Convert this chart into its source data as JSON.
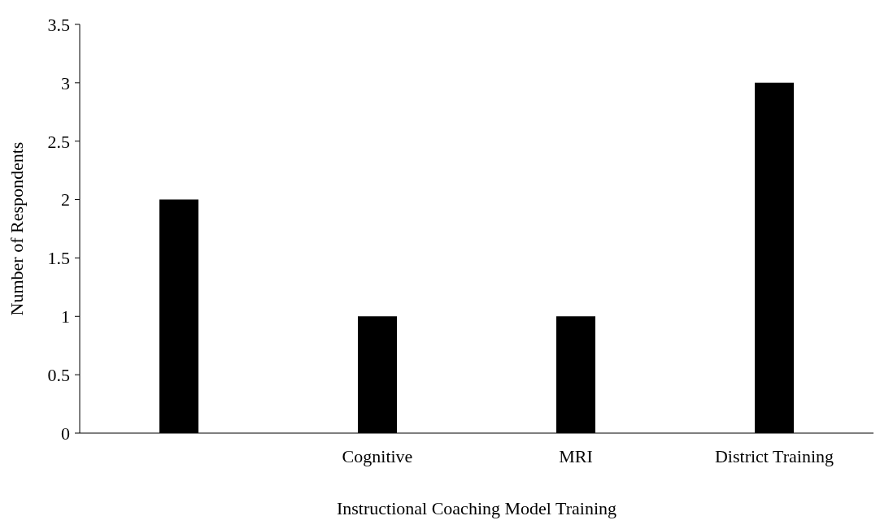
{
  "chart_data": {
    "type": "bar",
    "xlabel": "Instructional Coaching Model Training",
    "ylabel": "Number of Respondents",
    "categories": [
      null,
      "Cognitive",
      "MRI",
      "District Training"
    ],
    "values": [
      2,
      1,
      1,
      3
    ],
    "color": "#000000",
    "ylim": [
      0,
      3.5
    ],
    "yticks": [
      0,
      0.5,
      1,
      1.5,
      2,
      2.5,
      3,
      3.5
    ],
    "grid": false,
    "legend": false
  }
}
